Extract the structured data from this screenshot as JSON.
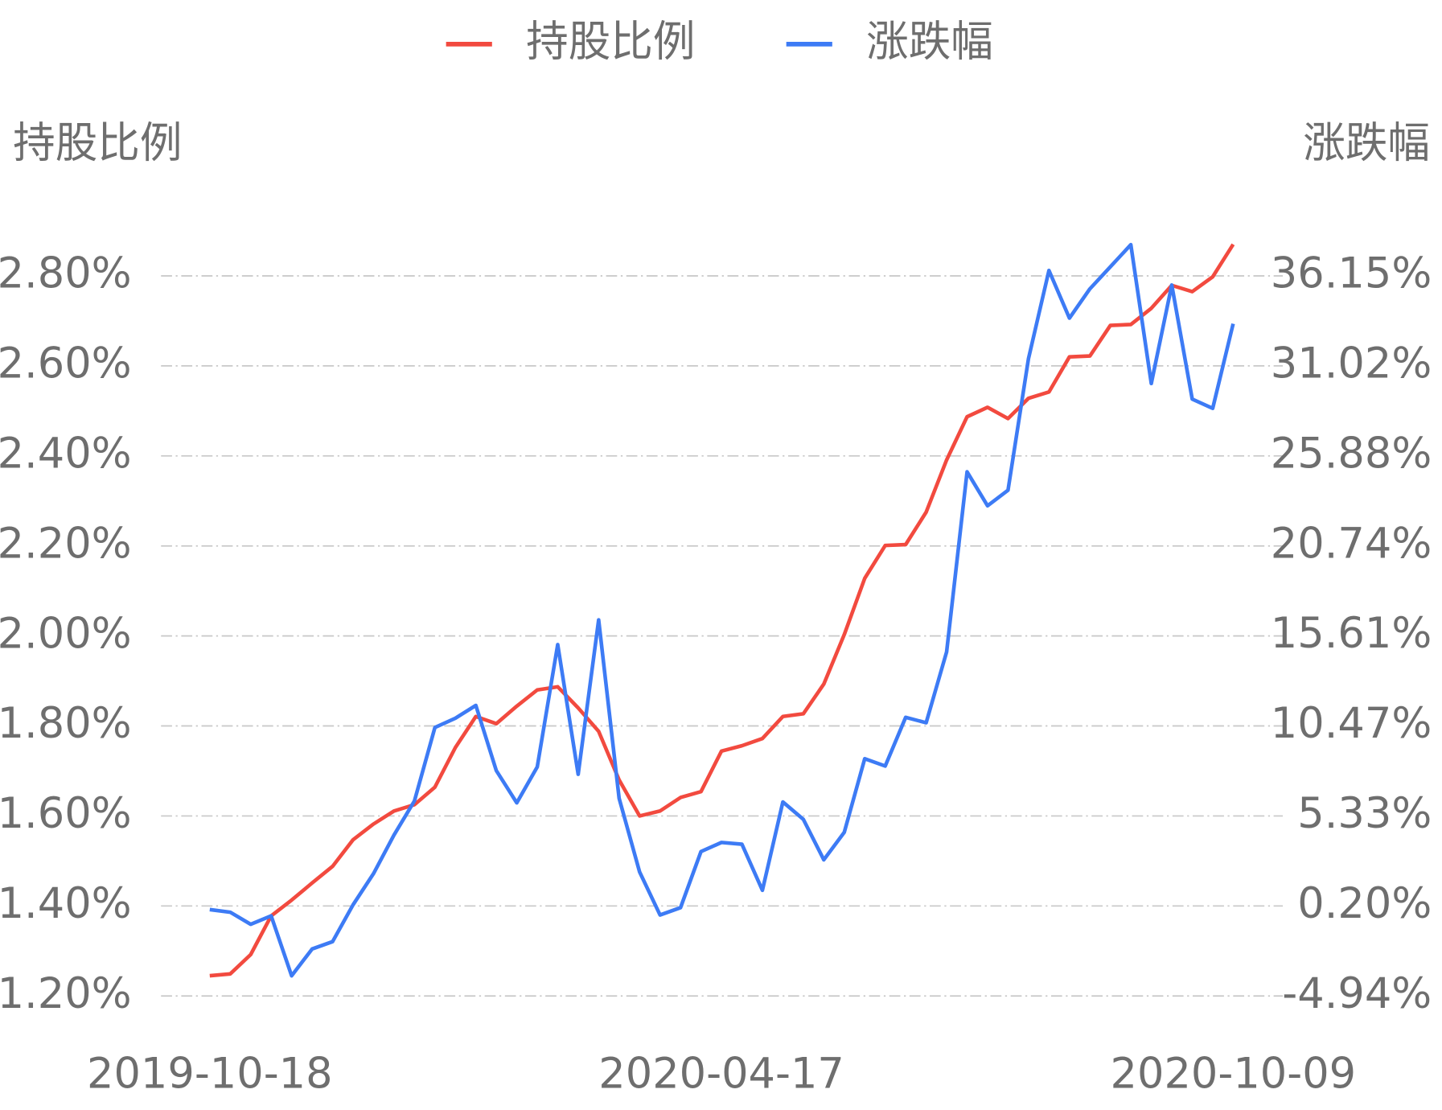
{
  "chart_data": {
    "type": "line",
    "legend": "top",
    "y_label": "持股比例",
    "y2_label": "涨跌幅",
    "categories": [
      "2019-10-18",
      null,
      null,
      null,
      null,
      null,
      null,
      null,
      null,
      null,
      null,
      null,
      null,
      null,
      null,
      null,
      null,
      null,
      null,
      null,
      null,
      null,
      null,
      null,
      null,
      "2020-04-17",
      null,
      null,
      null,
      null,
      null,
      null,
      null,
      null,
      null,
      null,
      null,
      null,
      null,
      null,
      null,
      null,
      null,
      null,
      null,
      null,
      null,
      null,
      null,
      null,
      "2020-10-09"
    ],
    "ylim": [
      1.2,
      2.8
    ],
    "yticks": [
      {
        "value": 1.2,
        "label": "1.20%"
      },
      {
        "value": 1.4,
        "label": "1.40%"
      },
      {
        "value": 1.6,
        "label": "1.60%"
      },
      {
        "value": 1.8,
        "label": "1.80%"
      },
      {
        "value": 2.0,
        "label": "2.00%"
      },
      {
        "value": 2.2,
        "label": "2.20%"
      },
      {
        "value": 2.4,
        "label": "2.40%"
      },
      {
        "value": 2.6,
        "label": "2.60%"
      },
      {
        "value": 2.8,
        "label": "2.80%"
      }
    ],
    "y2lim": [
      -4.94,
      36.15
    ],
    "y2ticks": [
      {
        "value": -4.94,
        "label": "-4.94%"
      },
      {
        "value": 0.2,
        "label": "0.20%"
      },
      {
        "value": 5.33,
        "label": "5.33%"
      },
      {
        "value": 10.47,
        "label": "10.47%"
      },
      {
        "value": 15.61,
        "label": "15.61%"
      },
      {
        "value": 20.74,
        "label": "20.74%"
      },
      {
        "value": 25.88,
        "label": "25.88%"
      },
      {
        "value": 31.02,
        "label": "31.02%"
      },
      {
        "value": 36.15,
        "label": "36.15%"
      }
    ],
    "grid": true,
    "series": [
      {
        "name": "持股比例",
        "color": "#f24a3f",
        "axis": "y",
        "values": [
          1.245,
          1.249,
          1.292,
          1.378,
          1.413,
          1.451,
          1.488,
          1.547,
          1.582,
          1.611,
          1.625,
          1.664,
          1.752,
          1.821,
          1.805,
          1.844,
          1.88,
          1.887,
          1.84,
          1.788,
          1.68,
          1.6,
          1.611,
          1.641,
          1.654,
          1.744,
          1.756,
          1.772,
          1.821,
          1.827,
          1.893,
          2.003,
          2.128,
          2.201,
          2.203,
          2.275,
          2.391,
          2.487,
          2.508,
          2.483,
          2.528,
          2.542,
          2.62,
          2.622,
          2.69,
          2.692,
          2.728,
          2.779,
          2.765,
          2.798,
          2.87
        ]
      },
      {
        "name": "涨跌幅",
        "color": "#3d7bf5",
        "axis": "y2",
        "values": [
          -0.01,
          -0.16,
          -0.85,
          -0.37,
          -3.79,
          -2.26,
          -1.84,
          0.26,
          2.04,
          4.24,
          6.19,
          10.38,
          10.91,
          11.64,
          7.92,
          6.08,
          8.13,
          15.11,
          7.71,
          16.52,
          6.34,
          2.14,
          -0.32,
          0.1,
          3.3,
          3.82,
          3.72,
          1.09,
          6.13,
          5.14,
          2.83,
          4.4,
          8.6,
          8.18,
          10.96,
          10.65,
          14.69,
          24.97,
          23.03,
          23.92,
          31.43,
          36.46,
          33.74,
          35.41,
          36.67,
          37.93,
          30.01,
          35.63,
          29.12,
          28.59,
          33.42
        ]
      }
    ]
  }
}
